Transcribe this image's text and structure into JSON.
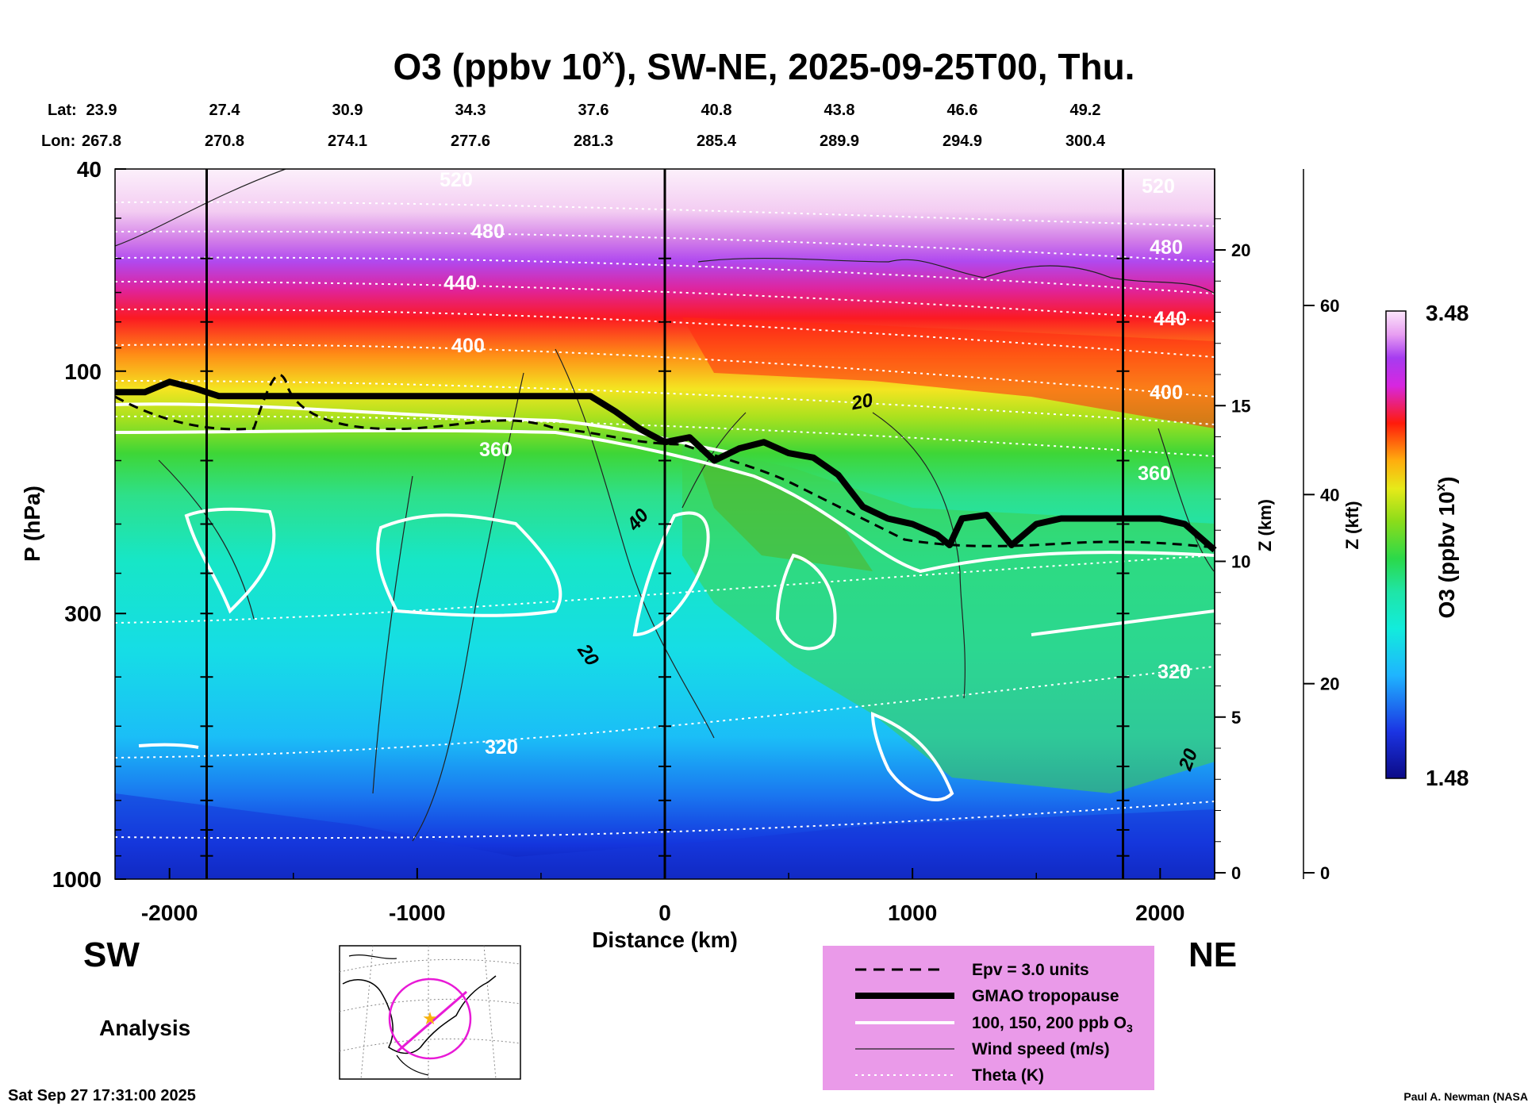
{
  "title": {
    "main": "O3 (ppbv 10",
    "sup": "x",
    "rest": "), SW-NE, 2025-09-25T00, Thu."
  },
  "header": {
    "lat_label": "Lat:",
    "lon_label": "Lon:",
    "lats": [
      "23.9",
      "27.4",
      "30.9",
      "34.3",
      "37.6",
      "40.8",
      "43.8",
      "46.6",
      "49.2"
    ],
    "lons": [
      "267.8",
      "270.8",
      "274.1",
      "277.6",
      "281.3",
      "285.4",
      "289.9",
      "294.9",
      "300.4"
    ]
  },
  "chart_data": {
    "type": "heatmap",
    "title": "O3 (ppbv 10^x), SW-NE, 2025-09-25T00, Thu.",
    "xlabel": "Distance (km)",
    "ylabel": "P (hPa)",
    "xlim": [
      -2220,
      2220
    ],
    "ylim": [
      1000,
      40
    ],
    "x_ticks": [
      -2000,
      -1000,
      0,
      1000,
      2000
    ],
    "x_tick_labels": [
      "-2000",
      "-1000",
      "0",
      "1000",
      "2000"
    ],
    "y_ticks": [
      40,
      100,
      300,
      1000
    ],
    "y_tick_labels": [
      "40",
      "100",
      "300",
      "1000"
    ],
    "z_km_label": "Z (km)",
    "z_km_ticks": [
      0,
      5,
      10,
      15,
      20
    ],
    "z_km_tick_labels": [
      "0",
      "5",
      "10",
      "15",
      "20"
    ],
    "z_kft_label": "Z (kft)",
    "z_kft_ticks": [
      0,
      20,
      40,
      60
    ],
    "z_kft_tick_labels": [
      "0",
      "20",
      "40",
      "60"
    ],
    "vertical_lines_km": [
      -1850,
      0,
      1850
    ],
    "colorbar": {
      "label": "O3 (ppbv 10",
      "label_sup": "x",
      "label_end": ")",
      "min": 1.48,
      "max": 3.48,
      "min_label": "1.48",
      "max_label": "3.48"
    },
    "theta_labels": [
      "520",
      "480",
      "440",
      "400",
      "360",
      "320",
      "520",
      "480",
      "440",
      "400",
      "360",
      "320"
    ],
    "wind_labels": [
      "20",
      "40",
      "20",
      "20"
    ],
    "tropopause_hpa": {
      "distance_km": [
        -2220,
        -2100,
        -2000,
        -1900,
        -1800,
        -1500,
        -1000,
        -500,
        -300,
        -200,
        -100,
        0,
        100,
        200,
        300,
        400,
        500,
        600,
        700,
        800,
        900,
        1000,
        1100,
        1150,
        1200,
        1300,
        1400,
        1500,
        1600,
        1800,
        2000,
        2100,
        2220
      ],
      "pressure_hpa": [
        110,
        110,
        105,
        108,
        112,
        112,
        112,
        112,
        112,
        120,
        130,
        138,
        135,
        150,
        142,
        138,
        145,
        148,
        160,
        185,
        195,
        200,
        210,
        220,
        195,
        192,
        220,
        200,
        195,
        195,
        195,
        200,
        225
      ]
    }
  },
  "labels": {
    "sw": "SW",
    "ne": "NE",
    "analysis": "Analysis"
  },
  "legend": {
    "items": [
      "Epv = 3.0 units",
      "GMAO tropopause",
      "100, 150, 200 ppb O",
      "Wind speed (m/s)",
      "Theta (K)"
    ],
    "o3_sub": "3"
  },
  "footer": {
    "timestamp": "Sat Sep 27 17:31:00 2025",
    "credit": "Paul A. Newman (NASA"
  },
  "colors": {
    "background": "#ffffff",
    "legend_bg": "#ea9ae9",
    "map_circle": "#e81ad6",
    "map_star": "#f7b20e"
  }
}
